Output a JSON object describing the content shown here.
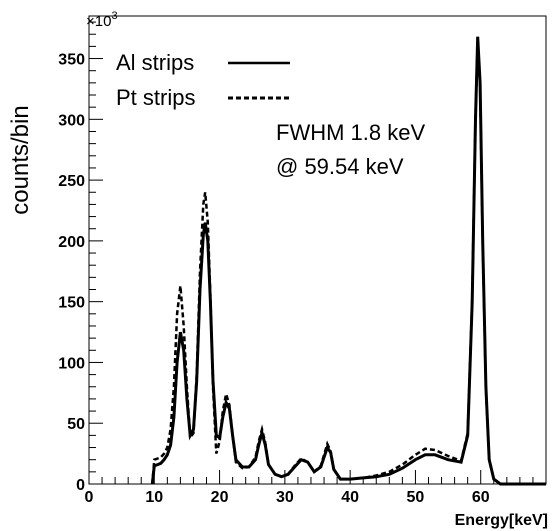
{
  "chart_data": {
    "type": "line",
    "title": "",
    "xlabel": "Energy[keV]",
    "ylabel": "counts/bin",
    "y_multiplier_label": "×10",
    "y_multiplier_exponent": "3",
    "xlim": [
      0,
      70
    ],
    "ylim": [
      0,
      385
    ],
    "x_ticks": [
      0,
      10,
      20,
      30,
      40,
      50,
      60
    ],
    "y_ticks": [
      0,
      50,
      100,
      150,
      200,
      250,
      300,
      350
    ],
    "grid": false,
    "legend_position": "top-left",
    "annotations": [
      "FWHM 1.8 keV",
      "@ 59.54 keV"
    ],
    "series": [
      {
        "name": "Al strips",
        "style": "solid",
        "color": "#000000",
        "points": [
          [
            9.7,
            0
          ],
          [
            10.0,
            15
          ],
          [
            10.5,
            16
          ],
          [
            11.0,
            17
          ],
          [
            11.5,
            20
          ],
          [
            12.0,
            24
          ],
          [
            12.5,
            32
          ],
          [
            13.0,
            55
          ],
          [
            13.5,
            100
          ],
          [
            14.0,
            125
          ],
          [
            14.5,
            110
          ],
          [
            15.0,
            70
          ],
          [
            15.5,
            40
          ],
          [
            16.0,
            45
          ],
          [
            16.5,
            85
          ],
          [
            17.0,
            160
          ],
          [
            17.5,
            205
          ],
          [
            17.8,
            215
          ],
          [
            18.2,
            200
          ],
          [
            18.6,
            150
          ],
          [
            19.0,
            85
          ],
          [
            19.5,
            40
          ],
          [
            20.0,
            38
          ],
          [
            20.5,
            55
          ],
          [
            21.0,
            67
          ],
          [
            21.5,
            62
          ],
          [
            22.0,
            40
          ],
          [
            22.5,
            20
          ],
          [
            23.5,
            14
          ],
          [
            24.5,
            14
          ],
          [
            25.5,
            20
          ],
          [
            26.0,
            32
          ],
          [
            26.5,
            42
          ],
          [
            27.0,
            32
          ],
          [
            27.5,
            16
          ],
          [
            28.5,
            8
          ],
          [
            29.5,
            6
          ],
          [
            30.5,
            8
          ],
          [
            31.5,
            14
          ],
          [
            32.5,
            20
          ],
          [
            33.5,
            18
          ],
          [
            34.5,
            10
          ],
          [
            35.5,
            14
          ],
          [
            36.5,
            30
          ],
          [
            37.0,
            26
          ],
          [
            37.5,
            12
          ],
          [
            38.5,
            4
          ],
          [
            40.0,
            4
          ],
          [
            42.0,
            5
          ],
          [
            44.0,
            6
          ],
          [
            46.0,
            8
          ],
          [
            48.0,
            13
          ],
          [
            50.0,
            20
          ],
          [
            51.5,
            24
          ],
          [
            53.0,
            24
          ],
          [
            55.0,
            20
          ],
          [
            57.0,
            18
          ],
          [
            58.0,
            40
          ],
          [
            58.7,
            150
          ],
          [
            59.2,
            300
          ],
          [
            59.54,
            368
          ],
          [
            59.9,
            330
          ],
          [
            60.3,
            200
          ],
          [
            60.8,
            80
          ],
          [
            61.3,
            20
          ],
          [
            62.0,
            4
          ],
          [
            63.0,
            0
          ],
          [
            70.0,
            0
          ]
        ]
      },
      {
        "name": "Pt strips",
        "style": "dashed",
        "color": "#000000",
        "points": [
          [
            9.7,
            0
          ],
          [
            10.0,
            20
          ],
          [
            10.5,
            21
          ],
          [
            11.0,
            22
          ],
          [
            11.5,
            25
          ],
          [
            12.0,
            30
          ],
          [
            12.5,
            45
          ],
          [
            13.0,
            80
          ],
          [
            13.5,
            140
          ],
          [
            14.0,
            163
          ],
          [
            14.5,
            130
          ],
          [
            15.0,
            80
          ],
          [
            15.5,
            38
          ],
          [
            16.0,
            42
          ],
          [
            16.5,
            90
          ],
          [
            17.0,
            175
          ],
          [
            17.5,
            230
          ],
          [
            17.8,
            240
          ],
          [
            18.2,
            215
          ],
          [
            18.6,
            155
          ],
          [
            19.0,
            80
          ],
          [
            19.5,
            25
          ],
          [
            20.0,
            35
          ],
          [
            20.5,
            60
          ],
          [
            21.0,
            74
          ],
          [
            21.5,
            65
          ],
          [
            22.0,
            40
          ],
          [
            22.5,
            18
          ],
          [
            23.5,
            13
          ],
          [
            24.5,
            14
          ],
          [
            25.5,
            22
          ],
          [
            26.0,
            35
          ],
          [
            26.5,
            45
          ],
          [
            27.0,
            34
          ],
          [
            27.5,
            16
          ],
          [
            28.5,
            8
          ],
          [
            29.5,
            6
          ],
          [
            30.5,
            8
          ],
          [
            31.5,
            15
          ],
          [
            32.5,
            21
          ],
          [
            33.5,
            18
          ],
          [
            34.5,
            10
          ],
          [
            35.5,
            15
          ],
          [
            36.5,
            33
          ],
          [
            37.0,
            27
          ],
          [
            37.5,
            12
          ],
          [
            38.5,
            4
          ],
          [
            40.0,
            4
          ],
          [
            42.0,
            5
          ],
          [
            44.0,
            7
          ],
          [
            46.0,
            10
          ],
          [
            48.0,
            16
          ],
          [
            50.0,
            24
          ],
          [
            51.5,
            29
          ],
          [
            53.0,
            28
          ],
          [
            55.0,
            23
          ],
          [
            57.0,
            19
          ],
          [
            58.0,
            42
          ],
          [
            58.7,
            152
          ],
          [
            59.2,
            302
          ],
          [
            59.54,
            365
          ],
          [
            59.9,
            328
          ],
          [
            60.3,
            198
          ],
          [
            60.8,
            78
          ],
          [
            61.3,
            20
          ],
          [
            62.0,
            4
          ],
          [
            63.0,
            0
          ],
          [
            70.0,
            0
          ]
        ]
      }
    ]
  }
}
